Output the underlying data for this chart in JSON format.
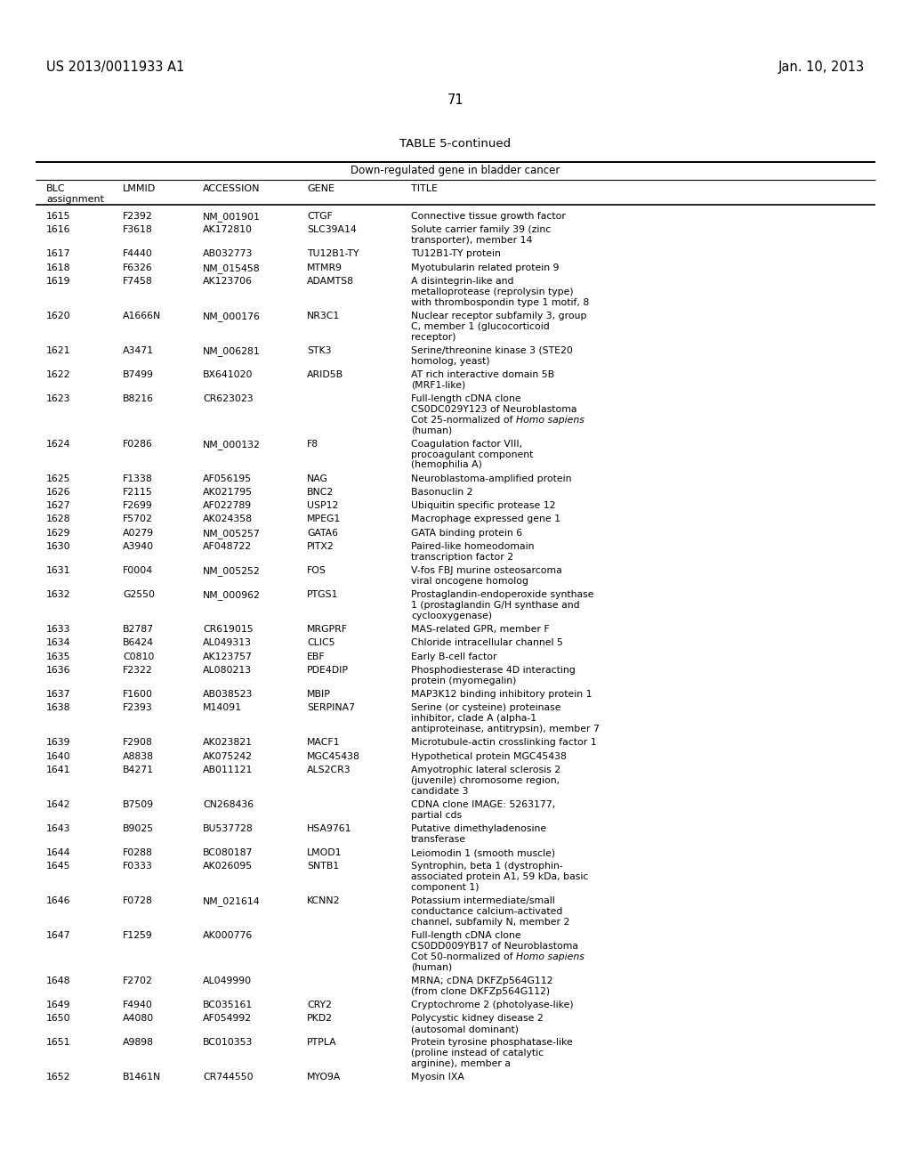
{
  "header_left": "US 2013/0011933 A1",
  "header_right": "Jan. 10, 2013",
  "page_number": "71",
  "table_title": "TABLE 5-continued",
  "table_subtitle": "Down-regulated gene in bladder cancer",
  "rows": [
    [
      "1615",
      "F2392",
      "NM_001901",
      "CTGF",
      "Connective tissue growth factor",
      1
    ],
    [
      "1616",
      "F3618",
      "AK172810",
      "SLC39A14",
      "Solute carrier family 39 (zinc\ntransporter), member 14",
      2
    ],
    [
      "1617",
      "F4440",
      "AB032773",
      "TU12B1-TY",
      "TU12B1-TY protein",
      1
    ],
    [
      "1618",
      "F6326",
      "NM_015458",
      "MTMR9",
      "Myotubularin related protein 9",
      1
    ],
    [
      "1619",
      "F7458",
      "AK123706",
      "ADAMTS8",
      "A disintegrin-like and\nmetalloprotease (reprolysin type)\nwith thrombospondin type 1 motif, 8",
      3
    ],
    [
      "1620",
      "A1666N",
      "NM_000176",
      "NR3C1",
      "Nuclear receptor subfamily 3, group\nC, member 1 (glucocorticoid\nreceptor)",
      3
    ],
    [
      "1621",
      "A3471",
      "NM_006281",
      "STK3",
      "Serine/threonine kinase 3 (STE20\nhomolog, yeast)",
      2
    ],
    [
      "1622",
      "B7499",
      "BX641020",
      "ARID5B",
      "AT rich interactive domain 5B\n(MRF1-like)",
      2
    ],
    [
      "1623",
      "B8216",
      "CR623023",
      "",
      "Full-length cDNA clone\nCS0DC029Y123 of Neuroblastoma\nCot 25-normalized of ||Homo sapiens||\n(human)",
      4
    ],
    [
      "1624",
      "F0286",
      "NM_000132",
      "F8",
      "Coagulation factor VIII,\nprocoagulant component\n(hemophilia A)",
      3
    ],
    [
      "1625",
      "F1338",
      "AF056195",
      "NAG",
      "Neuroblastoma-amplified protein",
      1
    ],
    [
      "1626",
      "F2115",
      "AK021795",
      "BNC2",
      "Basonuclin 2",
      1
    ],
    [
      "1627",
      "F2699",
      "AF022789",
      "USP12",
      "Ubiquitin specific protease 12",
      1
    ],
    [
      "1628",
      "F5702",
      "AK024358",
      "MPEG1",
      "Macrophage expressed gene 1",
      1
    ],
    [
      "1629",
      "A0279",
      "NM_005257",
      "GATA6",
      "GATA binding protein 6",
      1
    ],
    [
      "1630",
      "A3940",
      "AF048722",
      "PITX2",
      "Paired-like homeodomain\ntranscription factor 2",
      2
    ],
    [
      "1631",
      "F0004",
      "NM_005252",
      "FOS",
      "V-fos FBJ murine osteosarcoma\nviral oncogene homolog",
      2
    ],
    [
      "1632",
      "G2550",
      "NM_000962",
      "PTGS1",
      "Prostaglandin-endoperoxide synthase\n1 (prostaglandin G/H synthase and\ncyclooxygenase)",
      3
    ],
    [
      "1633",
      "B2787",
      "CR619015",
      "MRGPRF",
      "MAS-related GPR, member F",
      1
    ],
    [
      "1634",
      "B6424",
      "AL049313",
      "CLIC5",
      "Chloride intracellular channel 5",
      1
    ],
    [
      "1635",
      "C0810",
      "AK123757",
      "EBF",
      "Early B-cell factor",
      1
    ],
    [
      "1636",
      "F2322",
      "AL080213",
      "PDE4DIP",
      "Phosphodiesterase 4D interacting\nprotein (myomegalin)",
      2
    ],
    [
      "1637",
      "F1600",
      "AB038523",
      "MBIP",
      "MAP3K12 binding inhibitory protein 1",
      1
    ],
    [
      "1638",
      "F2393",
      "M14091",
      "SERPINA7",
      "Serine (or cysteine) proteinase\ninhibitor, clade A (alpha-1\nantiproteinase, antitrypsin), member 7",
      3
    ],
    [
      "1639",
      "F2908",
      "AK023821",
      "MACF1",
      "Microtubule-actin crosslinking factor 1",
      1
    ],
    [
      "1640",
      "A8838",
      "AK075242",
      "MGC45438",
      "Hypothetical protein MGC45438",
      1
    ],
    [
      "1641",
      "B4271",
      "AB011121",
      "ALS2CR3",
      "Amyotrophic lateral sclerosis 2\n(juvenile) chromosome region,\ncandidate 3",
      3
    ],
    [
      "1642",
      "B7509",
      "CN268436",
      "",
      "CDNA clone IMAGE: 5263177,\npartial cds",
      2
    ],
    [
      "1643",
      "B9025",
      "BU537728",
      "HSA9761",
      "Putative dimethyladenosine\ntransferase",
      2
    ],
    [
      "1644",
      "F0288",
      "BC080187",
      "LMOD1",
      "Leiomodin 1 (smooth muscle)",
      1
    ],
    [
      "1645",
      "F0333",
      "AK026095",
      "SNTB1",
      "Syntrophin, beta 1 (dystrophin-\nassociated protein A1, 59 kDa, basic\ncomponent 1)",
      3
    ],
    [
      "1646",
      "F0728",
      "NM_021614",
      "KCNN2",
      "Potassium intermediate/small\nconductance calcium-activated\nchannel, subfamily N, member 2",
      3
    ],
    [
      "1647",
      "F1259",
      "AK000776",
      "",
      "Full-length cDNA clone\nCS0DD009YB17 of Neuroblastoma\nCot 50-normalized of ||Homo sapiens||\n(human)",
      4
    ],
    [
      "1648",
      "F2702",
      "AL049990",
      "",
      "MRNA; cDNA DKFZp564G112\n(from clone DKFZp564G112)",
      2
    ],
    [
      "1649",
      "F4940",
      "BC035161",
      "CRY2",
      "Cryptochrome 2 (photolyase-like)",
      1
    ],
    [
      "1650",
      "A4080",
      "AF054992",
      "PKD2",
      "Polycystic kidney disease 2\n(autosomal dominant)",
      2
    ],
    [
      "1651",
      "A9898",
      "BC010353",
      "PTPLA",
      "Protein tyrosine phosphatase-like\n(proline instead of catalytic\narginine), member a",
      3
    ],
    [
      "1652",
      "B1461N",
      "CR744550",
      "MYO9A",
      "Myosin IXA",
      1
    ]
  ]
}
